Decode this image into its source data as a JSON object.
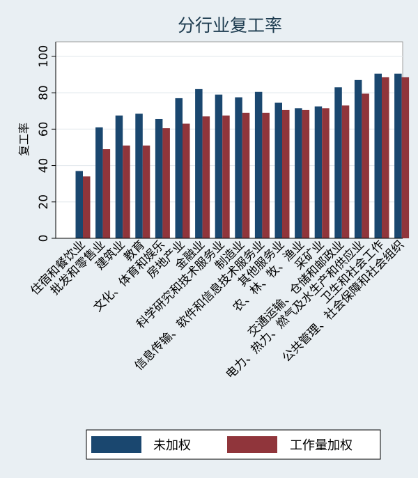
{
  "chart_data": {
    "type": "bar",
    "title": "分行业复工率",
    "xlabel": "",
    "ylabel": "复工率",
    "ylim": [
      0,
      108
    ],
    "yticks": [
      0,
      20,
      40,
      60,
      80,
      100
    ],
    "grid": true,
    "legend_position": "bottom",
    "categories": [
      "住宿和餐饮业",
      "批发和零售业",
      "建筑业",
      "教育",
      "文化、体育和娱乐",
      "房地产业",
      "金融业",
      "科学研究和技术服务业",
      "制造业",
      "信息传输、软件和信息技术服务业",
      "其他服务业",
      "农、林、牧、渔业",
      "采矿业",
      "交通运输、仓储和邮政业",
      "电力、热力、燃气及水生产和供应业",
      "卫生和社会工作",
      "公共管理、社会保障和社会组织"
    ],
    "series": [
      {
        "name": "未加权",
        "color": "#1a476f",
        "values": [
          37,
          61,
          67.5,
          68.5,
          65.5,
          77,
          82,
          79,
          77.5,
          80.5,
          74.5,
          71.5,
          72.5,
          83,
          87,
          90.5,
          90.5
        ]
      },
      {
        "name": "工作量加权",
        "color": "#90353b",
        "values": [
          34,
          49,
          51,
          51,
          60.5,
          63,
          67,
          67.5,
          69,
          69,
          70.5,
          70.5,
          71.5,
          73,
          79.5,
          88.5,
          88.5
        ]
      }
    ]
  }
}
